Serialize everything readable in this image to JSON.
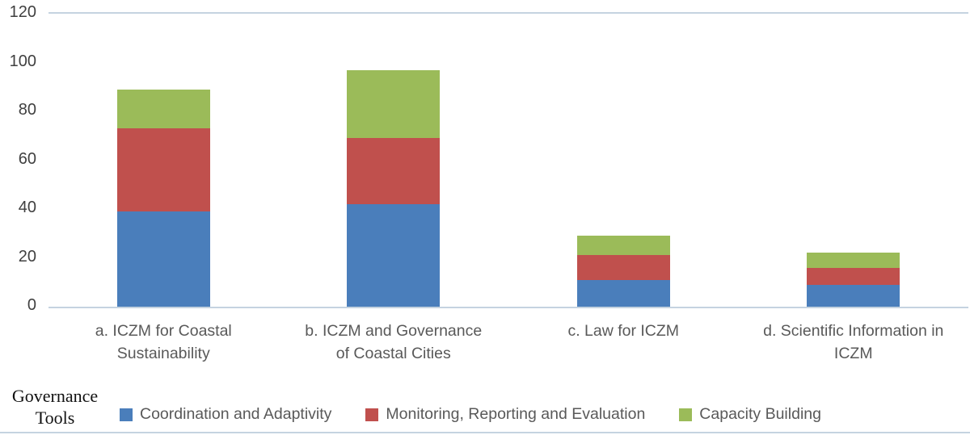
{
  "chart_data": {
    "type": "bar",
    "stacked": true,
    "title": "",
    "xlabel": "",
    "ylabel": "",
    "ylim": [
      0,
      120
    ],
    "yticks": [
      0,
      20,
      40,
      60,
      80,
      100,
      120
    ],
    "grid": false,
    "legend_position": "bottom",
    "legend_title": "Governance Tools",
    "categories": [
      "a. ICZM for Coastal Sustainability",
      "b. ICZM and Governance of Coastal Cities",
      "c. Law for ICZM",
      "d. Scientific Information in ICZM"
    ],
    "category_lines": [
      [
        "a. ICZM for Coastal",
        "Sustainability"
      ],
      [
        "b. ICZM and Governance",
        "of Coastal Cities"
      ],
      [
        "c. Law for ICZM"
      ],
      [
        "d. Scientific Information in",
        "ICZM"
      ]
    ],
    "series": [
      {
        "name": "Coordination and Adaptivity",
        "color": "#4a7ebb",
        "values": [
          39,
          42,
          11,
          9
        ]
      },
      {
        "name": "Monitoring, Reporting and Evaluation",
        "color": "#c0504d",
        "values": [
          34,
          27,
          10,
          7
        ]
      },
      {
        "name": "Capacity Building",
        "color": "#9bbb59",
        "values": [
          16,
          28,
          8,
          6
        ]
      }
    ]
  },
  "legend": {
    "title_line1": "Governance",
    "title_line2": "Tools"
  },
  "style": {
    "axis_line_color": "#c5d3e0"
  }
}
